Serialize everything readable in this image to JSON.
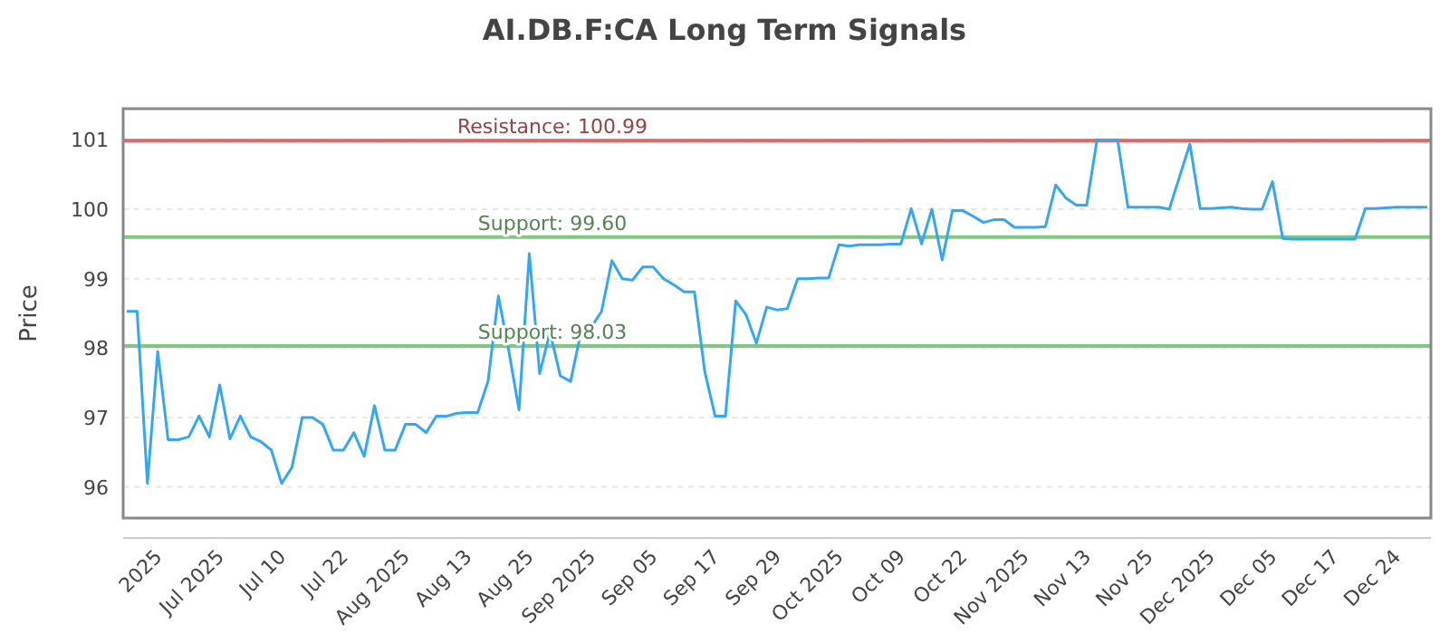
{
  "chart_data": {
    "type": "line",
    "title": "AI.DB.F:CA Long Term Signals",
    "ylabel": "Price",
    "categories": [
      null,
      null,
      null,
      "2025",
      null,
      null,
      null,
      null,
      null,
      "Jul 2025",
      null,
      null,
      null,
      null,
      null,
      "Jul 10",
      null,
      null,
      null,
      null,
      null,
      "Jul 22",
      null,
      null,
      null,
      null,
      null,
      "Aug 2025",
      null,
      null,
      null,
      null,
      null,
      "Aug 13",
      null,
      null,
      null,
      null,
      null,
      "Aug 25",
      null,
      null,
      null,
      null,
      null,
      "Sep 2025",
      null,
      null,
      null,
      null,
      null,
      "Sep 05",
      null,
      null,
      null,
      null,
      null,
      "Sep 17",
      null,
      null,
      null,
      null,
      null,
      "Sep 29",
      null,
      null,
      null,
      null,
      null,
      "Oct 2025",
      null,
      null,
      null,
      null,
      null,
      "Oct 09",
      null,
      null,
      null,
      null,
      null,
      "Oct 22",
      null,
      null,
      null,
      null,
      null,
      "Nov 2025",
      null,
      null,
      null,
      null,
      null,
      "Nov 13",
      null,
      null,
      null,
      null,
      null,
      "Nov 25",
      null,
      null,
      null,
      null,
      null,
      "Dec 2025",
      null,
      null,
      null,
      null,
      null,
      "Dec 05",
      null,
      null,
      null,
      null,
      null,
      "Dec 17",
      null,
      null,
      null,
      null,
      null,
      "Dec 24",
      null,
      null,
      null
    ],
    "series": [
      {
        "color": "#33a6f5",
        "values": [
          98.53,
          98.53,
          96.05,
          97.95,
          96.68,
          96.68,
          96.72,
          97.02,
          96.72,
          97.47,
          96.69,
          97.02,
          96.72,
          96.65,
          96.53,
          96.05,
          96.28,
          97.0,
          97.0,
          96.9,
          96.53,
          96.53,
          96.78,
          96.44,
          97.17,
          96.53,
          96.53,
          96.9,
          96.9,
          96.78,
          97.02,
          97.02,
          97.06,
          97.07,
          97.07,
          97.52,
          98.75,
          97.97,
          97.11,
          99.36,
          97.63,
          98.23,
          97.6,
          97.52,
          98.23,
          98.3,
          98.53,
          99.26,
          99.0,
          98.98,
          99.17,
          99.17,
          99.0,
          98.91,
          98.81,
          98.81,
          97.66,
          97.02,
          97.02,
          98.68,
          98.48,
          98.07,
          98.59,
          98.55,
          98.57,
          99.0,
          99.0,
          99.01,
          99.01,
          99.49,
          99.47,
          99.49,
          99.49,
          99.49,
          99.5,
          99.5,
          100.01,
          99.5,
          100.0,
          99.27,
          99.98,
          99.98,
          99.9,
          99.81,
          99.85,
          99.85,
          99.74,
          99.74,
          99.74,
          99.75,
          100.35,
          100.16,
          100.06,
          100.06,
          101.0,
          101.0,
          101.0,
          100.03,
          100.03,
          100.03,
          100.03,
          100.0,
          100.47,
          100.94,
          100.01,
          100.01,
          100.02,
          100.03,
          100.01,
          100.0,
          100.0,
          100.4,
          99.58,
          99.57,
          99.57,
          99.57,
          99.57,
          99.57,
          99.57,
          99.57,
          100.01,
          100.01,
          100.02,
          100.03,
          100.03,
          100.03,
          100.03
        ]
      }
    ],
    "ylim": [
      95.55,
      101.45
    ],
    "yticks": [
      96,
      97,
      98,
      99,
      100,
      101
    ],
    "grid": "y",
    "marker": "none",
    "line_style": "solid",
    "ref_lines": [
      {
        "axis": "y",
        "value": 100.99,
        "label": "Resistance: 100.99",
        "color": "#e06666"
      },
      {
        "axis": "y",
        "value": 99.6,
        "label": "Support: 99.60",
        "color": "#7fc97f"
      },
      {
        "axis": "y",
        "value": 98.03,
        "label": "Support: 98.03",
        "color": "#7fc97f"
      }
    ]
  }
}
